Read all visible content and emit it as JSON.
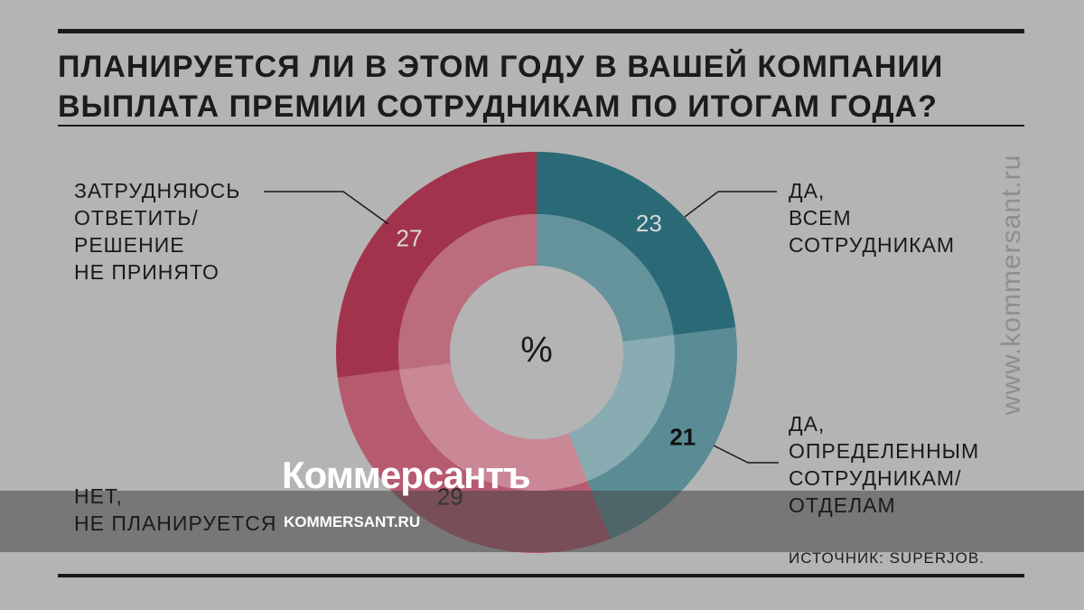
{
  "chart_data": {
    "type": "donut",
    "title": "ПЛАНИРУЕТСЯ ЛИ В ЭТОМ ГОДУ В ВАШЕЙ КОМПАНИИ\nВЫПЛАТА ПРЕМИИ СОТРУДНИКАМ ПО ИТОГАМ ГОДА?",
    "center_label": "%",
    "categories": [
      "ДА,\nВСЕМ\nСОТРУДНИКАМ",
      "ДА,\nОПРЕДЕЛЕННЫМ\nСОТРУДНИКАМ/\nОТДЕЛАМ",
      "НЕТ,\nНЕ ПЛАНИРУЕТСЯ",
      "ЗАТРУДНЯЮСЬ\nОТВЕТИТЬ/\nРЕШЕНИЕ\nНЕ ПРИНЯТО"
    ],
    "values": [
      23,
      21,
      29,
      27
    ],
    "colors": [
      "#2a6a76",
      "#5a8c95",
      "#b65a70",
      "#a1344c"
    ],
    "value_label_colors": [
      "#d8d8d8",
      "#111111",
      "#222222",
      "#d8d8d8"
    ]
  },
  "source": "ИСТОЧНИК: SUPERJOB.",
  "watermark": "www.kommersant.ru",
  "logo": {
    "name": "Коммерсантъ",
    "url": "KOMMERSANT.RU"
  }
}
